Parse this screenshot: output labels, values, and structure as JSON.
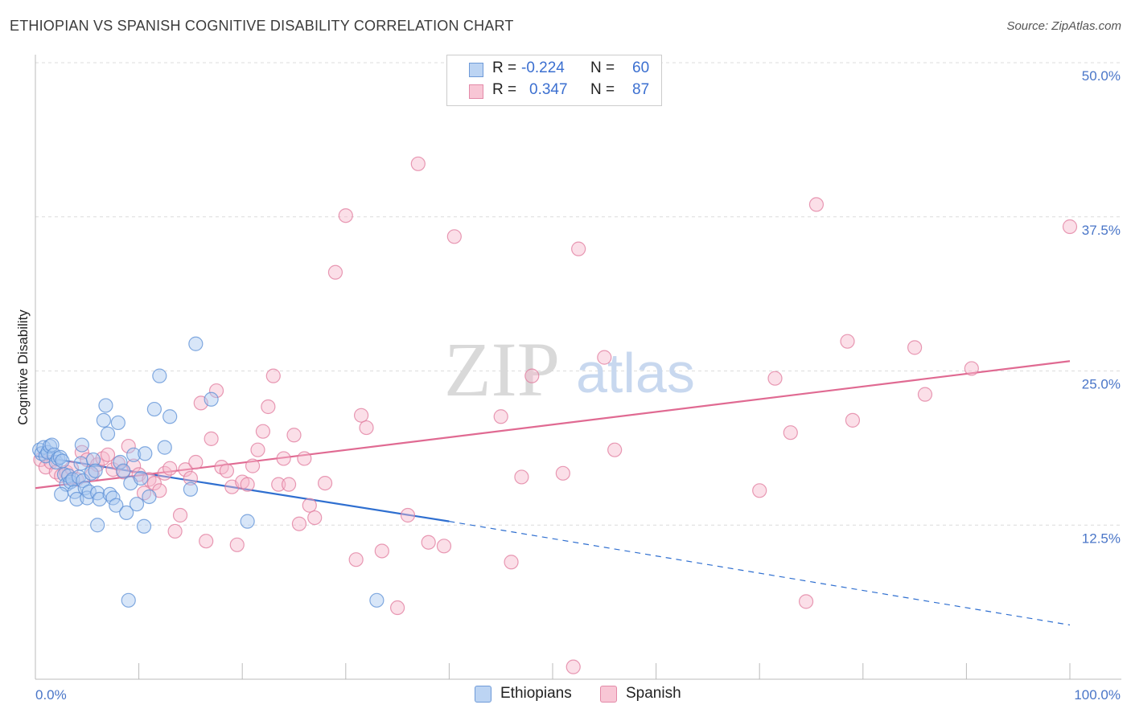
{
  "header": {
    "title": "ETHIOPIAN VS SPANISH COGNITIVE DISABILITY CORRELATION CHART",
    "source": "Source: ZipAtlas.com"
  },
  "watermark": {
    "zip": "ZIP",
    "atlas": "atlas"
  },
  "legend": {
    "rows": [
      {
        "r_label": "R =",
        "r_value": "-0.224",
        "n_label": "N =",
        "n_value": "60"
      },
      {
        "r_label": "R =",
        "r_value": "0.347",
        "n_label": "N =",
        "n_value": "87"
      }
    ]
  },
  "bottom_legend": {
    "ethiopians": "Ethiopians",
    "spanish": "Spanish"
  },
  "colors": {
    "ethiopians_fill": "#a9c8f0",
    "ethiopians_stroke": "#5b8fd6",
    "ethiopians_line": "#2f6fd0",
    "spanish_fill": "#f6b8cb",
    "spanish_stroke": "#e07a9c",
    "spanish_line": "#e06a92",
    "tick_label": "#4a76c8"
  },
  "chart_data": {
    "type": "scatter",
    "title": "ETHIOPIAN VS SPANISH COGNITIVE DISABILITY CORRELATION CHART",
    "xlabel": "",
    "ylabel": "Cognitive Disability",
    "xlim": [
      0,
      100
    ],
    "ylim": [
      0,
      50
    ],
    "x_tick_labels": [
      "0.0%",
      "100.0%"
    ],
    "y_ticks": [
      12.5,
      25.0,
      37.5,
      50.0
    ],
    "y_tick_labels": [
      "12.5%",
      "25.0%",
      "37.5%",
      "50.0%"
    ],
    "grid": "horizontal dashed",
    "legend_position": "top-center",
    "series": [
      {
        "name": "Ethiopians",
        "r": -0.224,
        "n": 60,
        "trend": {
          "x": [
            0,
            40,
            100
          ],
          "y": [
            18.1,
            12.8,
            4.4
          ],
          "solid_until_x": 40
        },
        "points": [
          [
            0.4,
            18.6
          ],
          [
            0.6,
            18.3
          ],
          [
            0.8,
            18.8
          ],
          [
            1.0,
            18.1
          ],
          [
            1.2,
            18.4
          ],
          [
            1.4,
            18.9
          ],
          [
            1.6,
            19.0
          ],
          [
            1.8,
            18.2
          ],
          [
            2.0,
            17.6
          ],
          [
            2.2,
            17.9
          ],
          [
            2.4,
            18.0
          ],
          [
            2.6,
            17.7
          ],
          [
            2.8,
            16.6
          ],
          [
            3.0,
            15.8
          ],
          [
            3.2,
            16.5
          ],
          [
            3.4,
            16.0
          ],
          [
            3.6,
            16.2
          ],
          [
            3.8,
            15.2
          ],
          [
            4.0,
            14.6
          ],
          [
            4.2,
            16.4
          ],
          [
            4.4,
            17.5
          ],
          [
            4.6,
            16.1
          ],
          [
            4.8,
            15.5
          ],
          [
            5.0,
            14.7
          ],
          [
            5.2,
            15.2
          ],
          [
            5.4,
            16.7
          ],
          [
            5.6,
            17.8
          ],
          [
            5.8,
            16.9
          ],
          [
            6.0,
            15.1
          ],
          [
            6.2,
            14.6
          ],
          [
            6.6,
            21.0
          ],
          [
            6.8,
            22.2
          ],
          [
            7.0,
            19.9
          ],
          [
            7.2,
            15.0
          ],
          [
            7.5,
            14.7
          ],
          [
            7.8,
            14.1
          ],
          [
            8.0,
            20.8
          ],
          [
            8.2,
            17.6
          ],
          [
            8.5,
            16.9
          ],
          [
            8.8,
            13.5
          ],
          [
            9.2,
            15.9
          ],
          [
            9.5,
            18.2
          ],
          [
            9.8,
            14.2
          ],
          [
            10.2,
            16.3
          ],
          [
            10.6,
            18.3
          ],
          [
            11.0,
            14.8
          ],
          [
            2.5,
            15.0
          ],
          [
            6.0,
            12.5
          ],
          [
            10.5,
            12.4
          ],
          [
            9.0,
            6.4
          ],
          [
            13.0,
            21.3
          ],
          [
            15.0,
            15.4
          ],
          [
            17.0,
            22.7
          ],
          [
            11.5,
            21.9
          ],
          [
            15.5,
            27.2
          ],
          [
            12.0,
            24.6
          ],
          [
            20.5,
            12.8
          ],
          [
            33.0,
            6.4
          ],
          [
            12.5,
            18.8
          ],
          [
            4.5,
            19.0
          ]
        ]
      },
      {
        "name": "Spanish",
        "r": 0.347,
        "n": 87,
        "trend": {
          "x": [
            0,
            100
          ],
          "y": [
            15.5,
            25.8
          ]
        },
        "points": [
          [
            0.5,
            17.8
          ],
          [
            1.0,
            17.2
          ],
          [
            1.5,
            17.6
          ],
          [
            2.0,
            16.8
          ],
          [
            2.5,
            16.5
          ],
          [
            3.0,
            16.8
          ],
          [
            3.5,
            17.1
          ],
          [
            4.0,
            16.2
          ],
          [
            4.5,
            18.4
          ],
          [
            5.0,
            17.8
          ],
          [
            5.5,
            16.6
          ],
          [
            6.0,
            17.4
          ],
          [
            6.5,
            17.9
          ],
          [
            7.0,
            18.2
          ],
          [
            7.5,
            17.0
          ],
          [
            8.0,
            17.5
          ],
          [
            8.5,
            16.8
          ],
          [
            9.0,
            18.9
          ],
          [
            9.5,
            17.3
          ],
          [
            10.0,
            16.6
          ],
          [
            10.5,
            15.1
          ],
          [
            11.0,
            16.2
          ],
          [
            11.5,
            15.9
          ],
          [
            12.0,
            15.3
          ],
          [
            12.5,
            16.7
          ],
          [
            13.0,
            17.1
          ],
          [
            13.5,
            12.0
          ],
          [
            14.0,
            13.3
          ],
          [
            14.5,
            17.0
          ],
          [
            15.0,
            16.3
          ],
          [
            15.5,
            17.6
          ],
          [
            16.0,
            22.4
          ],
          [
            16.5,
            11.2
          ],
          [
            17.0,
            19.5
          ],
          [
            17.5,
            23.4
          ],
          [
            18.0,
            17.2
          ],
          [
            18.5,
            16.9
          ],
          [
            19.0,
            15.6
          ],
          [
            19.5,
            10.9
          ],
          [
            20.0,
            16.0
          ],
          [
            20.5,
            15.8
          ],
          [
            21.0,
            17.3
          ],
          [
            21.5,
            18.6
          ],
          [
            22.0,
            20.1
          ],
          [
            22.5,
            22.1
          ],
          [
            23.0,
            24.6
          ],
          [
            23.5,
            15.8
          ],
          [
            24.0,
            17.9
          ],
          [
            24.5,
            15.8
          ],
          [
            25.0,
            19.8
          ],
          [
            25.5,
            12.6
          ],
          [
            26.0,
            17.9
          ],
          [
            26.5,
            14.1
          ],
          [
            27.0,
            13.1
          ],
          [
            28.0,
            15.9
          ],
          [
            29.0,
            33.0
          ],
          [
            30.0,
            37.6
          ],
          [
            31.0,
            9.7
          ],
          [
            31.5,
            21.4
          ],
          [
            32.0,
            20.4
          ],
          [
            33.5,
            10.4
          ],
          [
            35.0,
            5.8
          ],
          [
            36.0,
            13.3
          ],
          [
            37.0,
            41.8
          ],
          [
            38.0,
            11.1
          ],
          [
            39.5,
            10.8
          ],
          [
            40.5,
            35.9
          ],
          [
            45.0,
            21.3
          ],
          [
            46.0,
            9.5
          ],
          [
            47.0,
            16.4
          ],
          [
            48.0,
            24.6
          ],
          [
            51.0,
            16.7
          ],
          [
            52.0,
            1.0
          ],
          [
            52.5,
            34.9
          ],
          [
            55.0,
            26.1
          ],
          [
            56.0,
            18.6
          ],
          [
            70.0,
            15.3
          ],
          [
            71.5,
            24.4
          ],
          [
            73.0,
            20.0
          ],
          [
            74.5,
            6.3
          ],
          [
            75.5,
            38.5
          ],
          [
            78.5,
            27.4
          ],
          [
            79.0,
            21.0
          ],
          [
            85.0,
            26.9
          ],
          [
            86.0,
            23.1
          ],
          [
            90.5,
            25.2
          ],
          [
            100.0,
            36.7
          ]
        ]
      }
    ]
  }
}
